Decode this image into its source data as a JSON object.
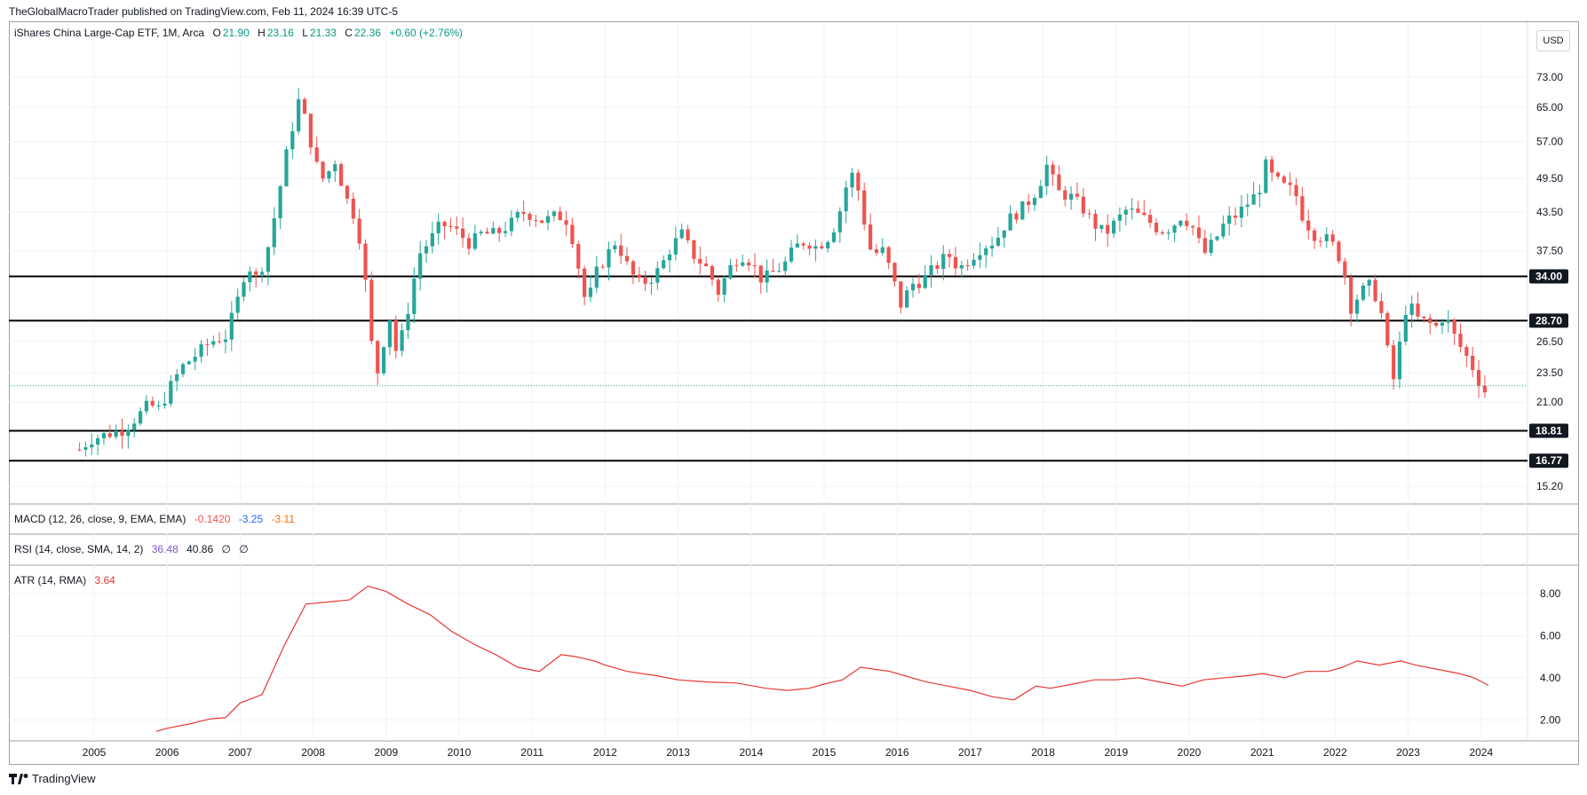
{
  "header": {
    "publisher": "TheGlobalMacroTrader published on TradingView.com, Feb 11, 2024 16:39 UTC-5"
  },
  "main_legend": {
    "title": "iShares China Large-Cap ETF, 1M, Arca",
    "o_label": "O",
    "o_value": "21.90",
    "h_label": "H",
    "h_value": "23.16",
    "l_label": "L",
    "l_value": "21.33",
    "c_label": "C",
    "c_value": "22.36",
    "change": "+0.60 (+2.76%)"
  },
  "currency_button": "USD",
  "macd_legend": {
    "label": "MACD (12, 26, close, 9, EMA, EMA)",
    "v1": "-0.1420",
    "v2": "-3.25",
    "v3": "-3.11"
  },
  "rsi_legend": {
    "label": "RSI (14, close, SMA, 14, 2)",
    "v1": "36.48",
    "v2": "40.86",
    "v3": "∅",
    "v4": "∅"
  },
  "atr_legend": {
    "label": "ATR (14, RMA)",
    "v1": "3.64"
  },
  "brand": "TradingView",
  "colors": {
    "up": "#26a69a",
    "down": "#ef5350",
    "atr": "#e53935",
    "macd_signal": "#2962ff",
    "macd_hist": "#ff6d00",
    "rsi": "#7e57c2"
  },
  "chart_data": [
    {
      "type": "candlestick",
      "title": "iShares China Large-Cap ETF, 1M, Arca",
      "scale": "log",
      "ylim": [
        14.5,
        80
      ],
      "y_ticks": [
        "73.00",
        "65.00",
        "57.00",
        "49.50",
        "43.50",
        "37.50",
        "26.50",
        "23.50",
        "21.00",
        "15.20"
      ],
      "x_ticks": [
        "2005",
        "2006",
        "2007",
        "2008",
        "2009",
        "2010",
        "2011",
        "2012",
        "2013",
        "2014",
        "2015",
        "2016",
        "2017",
        "2018",
        "2019",
        "2020",
        "2021",
        "2022",
        "2023",
        "2024"
      ],
      "horizontal_levels": [
        34.0,
        28.7,
        18.81,
        16.77
      ],
      "level_labels": [
        "34.00",
        "28.70",
        "18.81",
        "16.77"
      ],
      "last_price": 22.36,
      "series": [
        {
          "name": "",
          "anchors": [
            [
              2004.8,
              17.5
            ],
            [
              2004.95,
              18.2
            ],
            [
              2005.2,
              18.6
            ],
            [
              2005.4,
              18.9
            ],
            [
              2005.6,
              19.9
            ],
            [
              2005.75,
              20.8
            ],
            [
              2005.9,
              20.4
            ],
            [
              2006.0,
              21.8
            ],
            [
              2006.2,
              24.0
            ],
            [
              2006.4,
              25.2
            ],
            [
              2006.6,
              26.5
            ],
            [
              2006.8,
              27.0
            ],
            [
              2006.95,
              30.5
            ],
            [
              2007.1,
              36.0
            ],
            [
              2007.2,
              33.5
            ],
            [
              2007.35,
              36.5
            ],
            [
              2007.5,
              44.5
            ],
            [
              2007.6,
              52.0
            ],
            [
              2007.75,
              63.0
            ],
            [
              2007.82,
              68.0
            ],
            [
              2007.9,
              61.0
            ],
            [
              2008.0,
              55.0
            ],
            [
              2008.1,
              49.0
            ],
            [
              2008.2,
              50.5
            ],
            [
              2008.3,
              53.0
            ],
            [
              2008.45,
              46.0
            ],
            [
              2008.6,
              42.0
            ],
            [
              2008.7,
              35.0
            ],
            [
              2008.78,
              27.0
            ],
            [
              2008.88,
              23.5
            ],
            [
              2008.95,
              26.0
            ],
            [
              2009.05,
              29.0
            ],
            [
              2009.15,
              25.0
            ],
            [
              2009.3,
              30.0
            ],
            [
              2009.45,
              37.0
            ],
            [
              2009.6,
              39.0
            ],
            [
              2009.75,
              41.5
            ],
            [
              2009.9,
              41.0
            ],
            [
              2010.0,
              40.0
            ],
            [
              2010.15,
              38.5
            ],
            [
              2010.3,
              40.0
            ],
            [
              2010.5,
              40.0
            ],
            [
              2010.7,
              41.5
            ],
            [
              2010.85,
              43.5
            ],
            [
              2011.0,
              43.0
            ],
            [
              2011.15,
              42.0
            ],
            [
              2011.35,
              43.0
            ],
            [
              2011.5,
              42.0
            ],
            [
              2011.6,
              37.0
            ],
            [
              2011.75,
              30.0
            ],
            [
              2011.85,
              34.0
            ],
            [
              2012.0,
              36.5
            ],
            [
              2012.15,
              39.0
            ],
            [
              2012.3,
              35.5
            ],
            [
              2012.45,
              33.0
            ],
            [
              2012.6,
              33.5
            ],
            [
              2012.75,
              35.0
            ],
            [
              2012.9,
              38.0
            ],
            [
              2013.05,
              40.0
            ],
            [
              2013.2,
              37.0
            ],
            [
              2013.4,
              35.0
            ],
            [
              2013.55,
              32.0
            ],
            [
              2013.7,
              35.0
            ],
            [
              2013.85,
              37.0
            ],
            [
              2014.0,
              36.0
            ],
            [
              2014.15,
              33.5
            ],
            [
              2014.3,
              34.5
            ],
            [
              2014.45,
              35.5
            ],
            [
              2014.6,
              38.0
            ],
            [
              2014.75,
              39.0
            ],
            [
              2014.9,
              38.0
            ],
            [
              2015.1,
              40.0
            ],
            [
              2015.25,
              45.0
            ],
            [
              2015.35,
              51.0
            ],
            [
              2015.45,
              48.5
            ],
            [
              2015.55,
              42.0
            ],
            [
              2015.65,
              37.0
            ],
            [
              2015.8,
              37.5
            ],
            [
              2015.9,
              35.0
            ],
            [
              2016.05,
              30.5
            ],
            [
              2016.2,
              33.0
            ],
            [
              2016.35,
              33.5
            ],
            [
              2016.5,
              35.0
            ],
            [
              2016.7,
              37.0
            ],
            [
              2016.85,
              35.0
            ],
            [
              2017.0,
              36.5
            ],
            [
              2017.15,
              38.0
            ],
            [
              2017.35,
              39.0
            ],
            [
              2017.5,
              42.0
            ],
            [
              2017.7,
              44.0
            ],
            [
              2017.85,
              46.0
            ],
            [
              2017.95,
              48.5
            ],
            [
              2018.05,
              52.0
            ],
            [
              2018.2,
              47.0
            ],
            [
              2018.4,
              46.0
            ],
            [
              2018.55,
              44.0
            ],
            [
              2018.7,
              41.5
            ],
            [
              2018.85,
              40.0
            ],
            [
              2019.0,
              42.0
            ],
            [
              2019.15,
              44.0
            ],
            [
              2019.3,
              43.0
            ],
            [
              2019.45,
              42.0
            ],
            [
              2019.6,
              40.5
            ],
            [
              2019.75,
              41.0
            ],
            [
              2019.9,
              43.0
            ],
            [
              2020.05,
              41.0
            ],
            [
              2020.2,
              37.0
            ],
            [
              2020.35,
              39.0
            ],
            [
              2020.5,
              42.0
            ],
            [
              2020.65,
              43.0
            ],
            [
              2020.8,
              45.0
            ],
            [
              2020.95,
              47.0
            ],
            [
              2021.05,
              52.0
            ],
            [
              2021.15,
              49.5
            ],
            [
              2021.3,
              48.0
            ],
            [
              2021.45,
              47.0
            ],
            [
              2021.55,
              43.0
            ],
            [
              2021.7,
              40.0
            ],
            [
              2021.85,
              39.5
            ],
            [
              2022.0,
              38.0
            ],
            [
              2022.12,
              35.0
            ],
            [
              2022.2,
              30.0
            ],
            [
              2022.35,
              32.0
            ],
            [
              2022.5,
              33.0
            ],
            [
              2022.65,
              29.0
            ],
            [
              2022.75,
              24.0
            ],
            [
              2022.82,
              22.5
            ],
            [
              2022.92,
              28.5
            ],
            [
              2023.0,
              31.0
            ],
            [
              2023.1,
              29.0
            ],
            [
              2023.25,
              28.5
            ],
            [
              2023.4,
              28.0
            ],
            [
              2023.5,
              29.5
            ],
            [
              2023.6,
              27.5
            ],
            [
              2023.75,
              25.5
            ],
            [
              2023.85,
              24.5
            ],
            [
              2023.95,
              23.0
            ],
            [
              2024.05,
              21.9
            ],
            [
              2024.1,
              22.36
            ]
          ]
        }
      ]
    },
    {
      "type": "line",
      "title": "ATR (14, RMA)",
      "ylim": [
        1.0,
        8.8
      ],
      "y_ticks": [
        "8.00",
        "6.00",
        "4.00",
        "2.00"
      ],
      "series": [
        {
          "name": "",
          "x": [
            2005.85,
            2006.0,
            2006.3,
            2006.6,
            2006.8,
            2007.0,
            2007.3,
            2007.6,
            2007.9,
            2008.2,
            2008.5,
            2008.75,
            2009.0,
            2009.3,
            2009.6,
            2009.9,
            2010.2,
            2010.5,
            2010.8,
            2011.1,
            2011.4,
            2011.6,
            2011.85,
            2012.0,
            2012.3,
            2012.7,
            2013.0,
            2013.4,
            2013.8,
            2014.2,
            2014.5,
            2014.8,
            2015.0,
            2015.25,
            2015.5,
            2015.7,
            2015.9,
            2016.1,
            2016.4,
            2016.7,
            2017.0,
            2017.3,
            2017.6,
            2017.9,
            2018.1,
            2018.4,
            2018.7,
            2019.0,
            2019.3,
            2019.6,
            2019.9,
            2020.2,
            2020.5,
            2020.8,
            2021.0,
            2021.3,
            2021.6,
            2021.9,
            2022.1,
            2022.3,
            2022.6,
            2022.9,
            2023.1,
            2023.4,
            2023.7,
            2023.9,
            2024.1
          ],
          "values": [
            1.45,
            1.6,
            1.8,
            2.05,
            2.1,
            2.8,
            3.2,
            5.5,
            7.5,
            7.6,
            7.7,
            8.35,
            8.1,
            7.5,
            7.0,
            6.2,
            5.6,
            5.1,
            4.5,
            4.3,
            5.1,
            5.0,
            4.8,
            4.6,
            4.3,
            4.1,
            3.9,
            3.8,
            3.75,
            3.5,
            3.4,
            3.5,
            3.7,
            3.9,
            4.5,
            4.4,
            4.3,
            4.1,
            3.8,
            3.6,
            3.4,
            3.1,
            2.95,
            3.6,
            3.5,
            3.7,
            3.9,
            3.9,
            4.0,
            3.8,
            3.6,
            3.9,
            4.0,
            4.1,
            4.2,
            4.0,
            4.3,
            4.3,
            4.5,
            4.8,
            4.6,
            4.8,
            4.6,
            4.4,
            4.2,
            4.0,
            3.64
          ]
        }
      ]
    }
  ]
}
